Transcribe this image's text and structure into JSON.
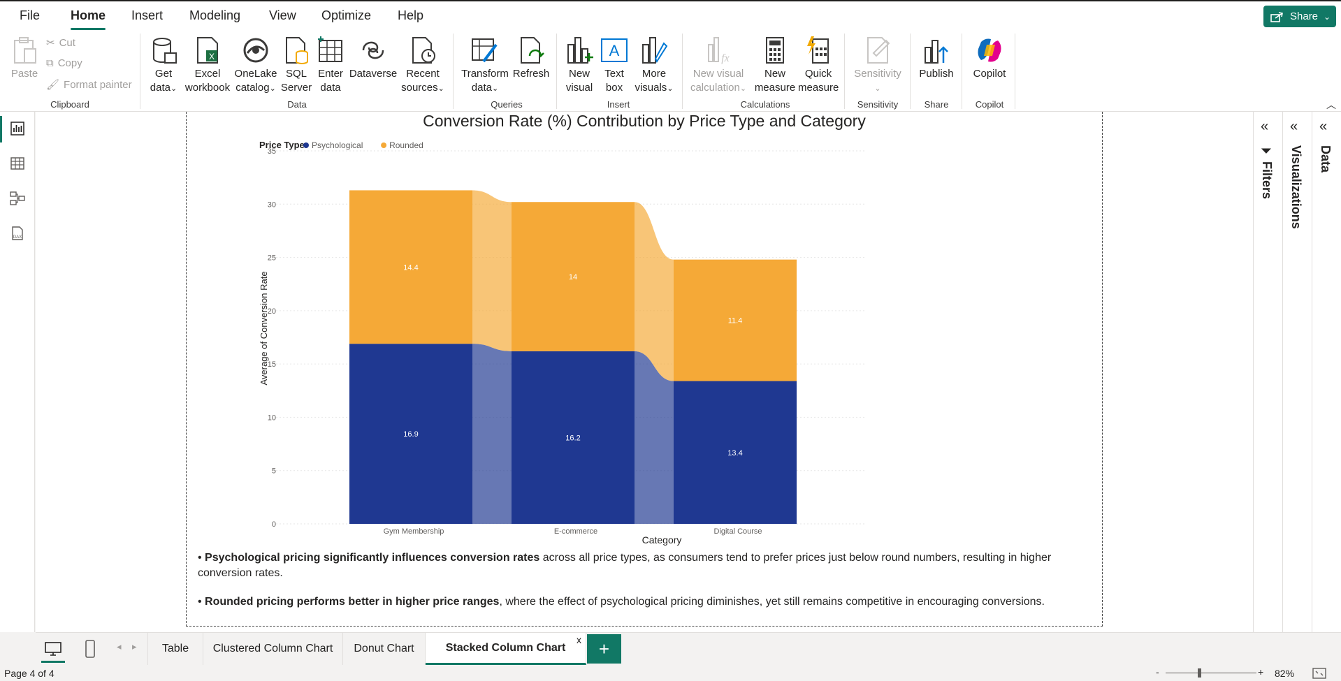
{
  "menu": {
    "items": [
      "File",
      "Home",
      "Insert",
      "Modeling",
      "View",
      "Optimize",
      "Help"
    ],
    "active": "Home",
    "share_label": "Share"
  },
  "ribbon": {
    "clipboard": {
      "paste": "Paste",
      "cut": "Cut",
      "copy": "Copy",
      "format_painter": "Format painter",
      "group": "Clipboard"
    },
    "data": {
      "get_data": [
        "Get",
        "data"
      ],
      "excel": [
        "Excel",
        "workbook"
      ],
      "onelake": [
        "OneLake",
        "catalog"
      ],
      "sql": [
        "SQL",
        "Server"
      ],
      "enter": [
        "Enter",
        "data"
      ],
      "dataverse": [
        "Dataverse"
      ],
      "recent": [
        "Recent",
        "sources"
      ],
      "group": "Data"
    },
    "queries": {
      "transform": [
        "Transform",
        "data"
      ],
      "refresh": [
        "Refresh"
      ],
      "group": "Queries"
    },
    "insert": {
      "new_visual": [
        "New",
        "visual"
      ],
      "text_box": [
        "Text",
        "box"
      ],
      "more_visuals": [
        "More",
        "visuals"
      ],
      "group": "Insert"
    },
    "calculations": {
      "new_visual_calc": [
        "New visual",
        "calculation"
      ],
      "new_measure": [
        "New",
        "measure"
      ],
      "quick_measure": [
        "Quick",
        "measure"
      ],
      "group": "Calculations"
    },
    "sensitivity": {
      "label": [
        "Sensitivity"
      ],
      "group": "Sensitivity"
    },
    "share": {
      "publish": [
        "Publish"
      ],
      "group": "Share"
    },
    "copilot": {
      "label": [
        "Copilot"
      ],
      "group": "Copilot"
    }
  },
  "report": {
    "insights": [
      {
        "bold": "Psychological pricing significantly influences conversion rates",
        "rest": " across all price types, as consumers tend to prefer prices just below round numbers, resulting in higher conversion rates."
      },
      {
        "bold": "Rounded pricing performs better in higher price ranges",
        "rest": ", where the effect of psychological pricing diminishes, yet still remains competitive in encouraging conversions."
      }
    ]
  },
  "chart_data": {
    "type": "bar",
    "stacked": true,
    "ribbon": true,
    "title": "Conversion Rate (%) Contribution by Price Type and Category",
    "legend_title": "Price Type",
    "legend_position": "top-left",
    "xlabel": "Category",
    "ylabel": "Average of Conversion Rate",
    "ylim": [
      0,
      35
    ],
    "yticks": [
      0,
      5,
      10,
      15,
      20,
      25,
      30,
      35
    ],
    "grid": true,
    "categories": [
      "Gym Membership",
      "E-commerce",
      "Digital Course"
    ],
    "series": [
      {
        "name": "Psychological",
        "color": "#1f3891",
        "values": [
          16.9,
          16.2,
          13.4
        ]
      },
      {
        "name": "Rounded",
        "color": "#f5a937",
        "values": [
          14.4,
          14.0,
          11.4
        ]
      }
    ]
  },
  "panes": {
    "filters": "Filters",
    "visualizations": "Visualizations",
    "data": "Data"
  },
  "tabs": {
    "items": [
      "Table",
      "Clustered Column Chart",
      "Donut Chart",
      "Stacked Column Chart"
    ],
    "active": "Stacked Column Chart",
    "close": "x",
    "add": "+"
  },
  "status": {
    "page": "Page 4 of 4",
    "zoom": "82%"
  }
}
